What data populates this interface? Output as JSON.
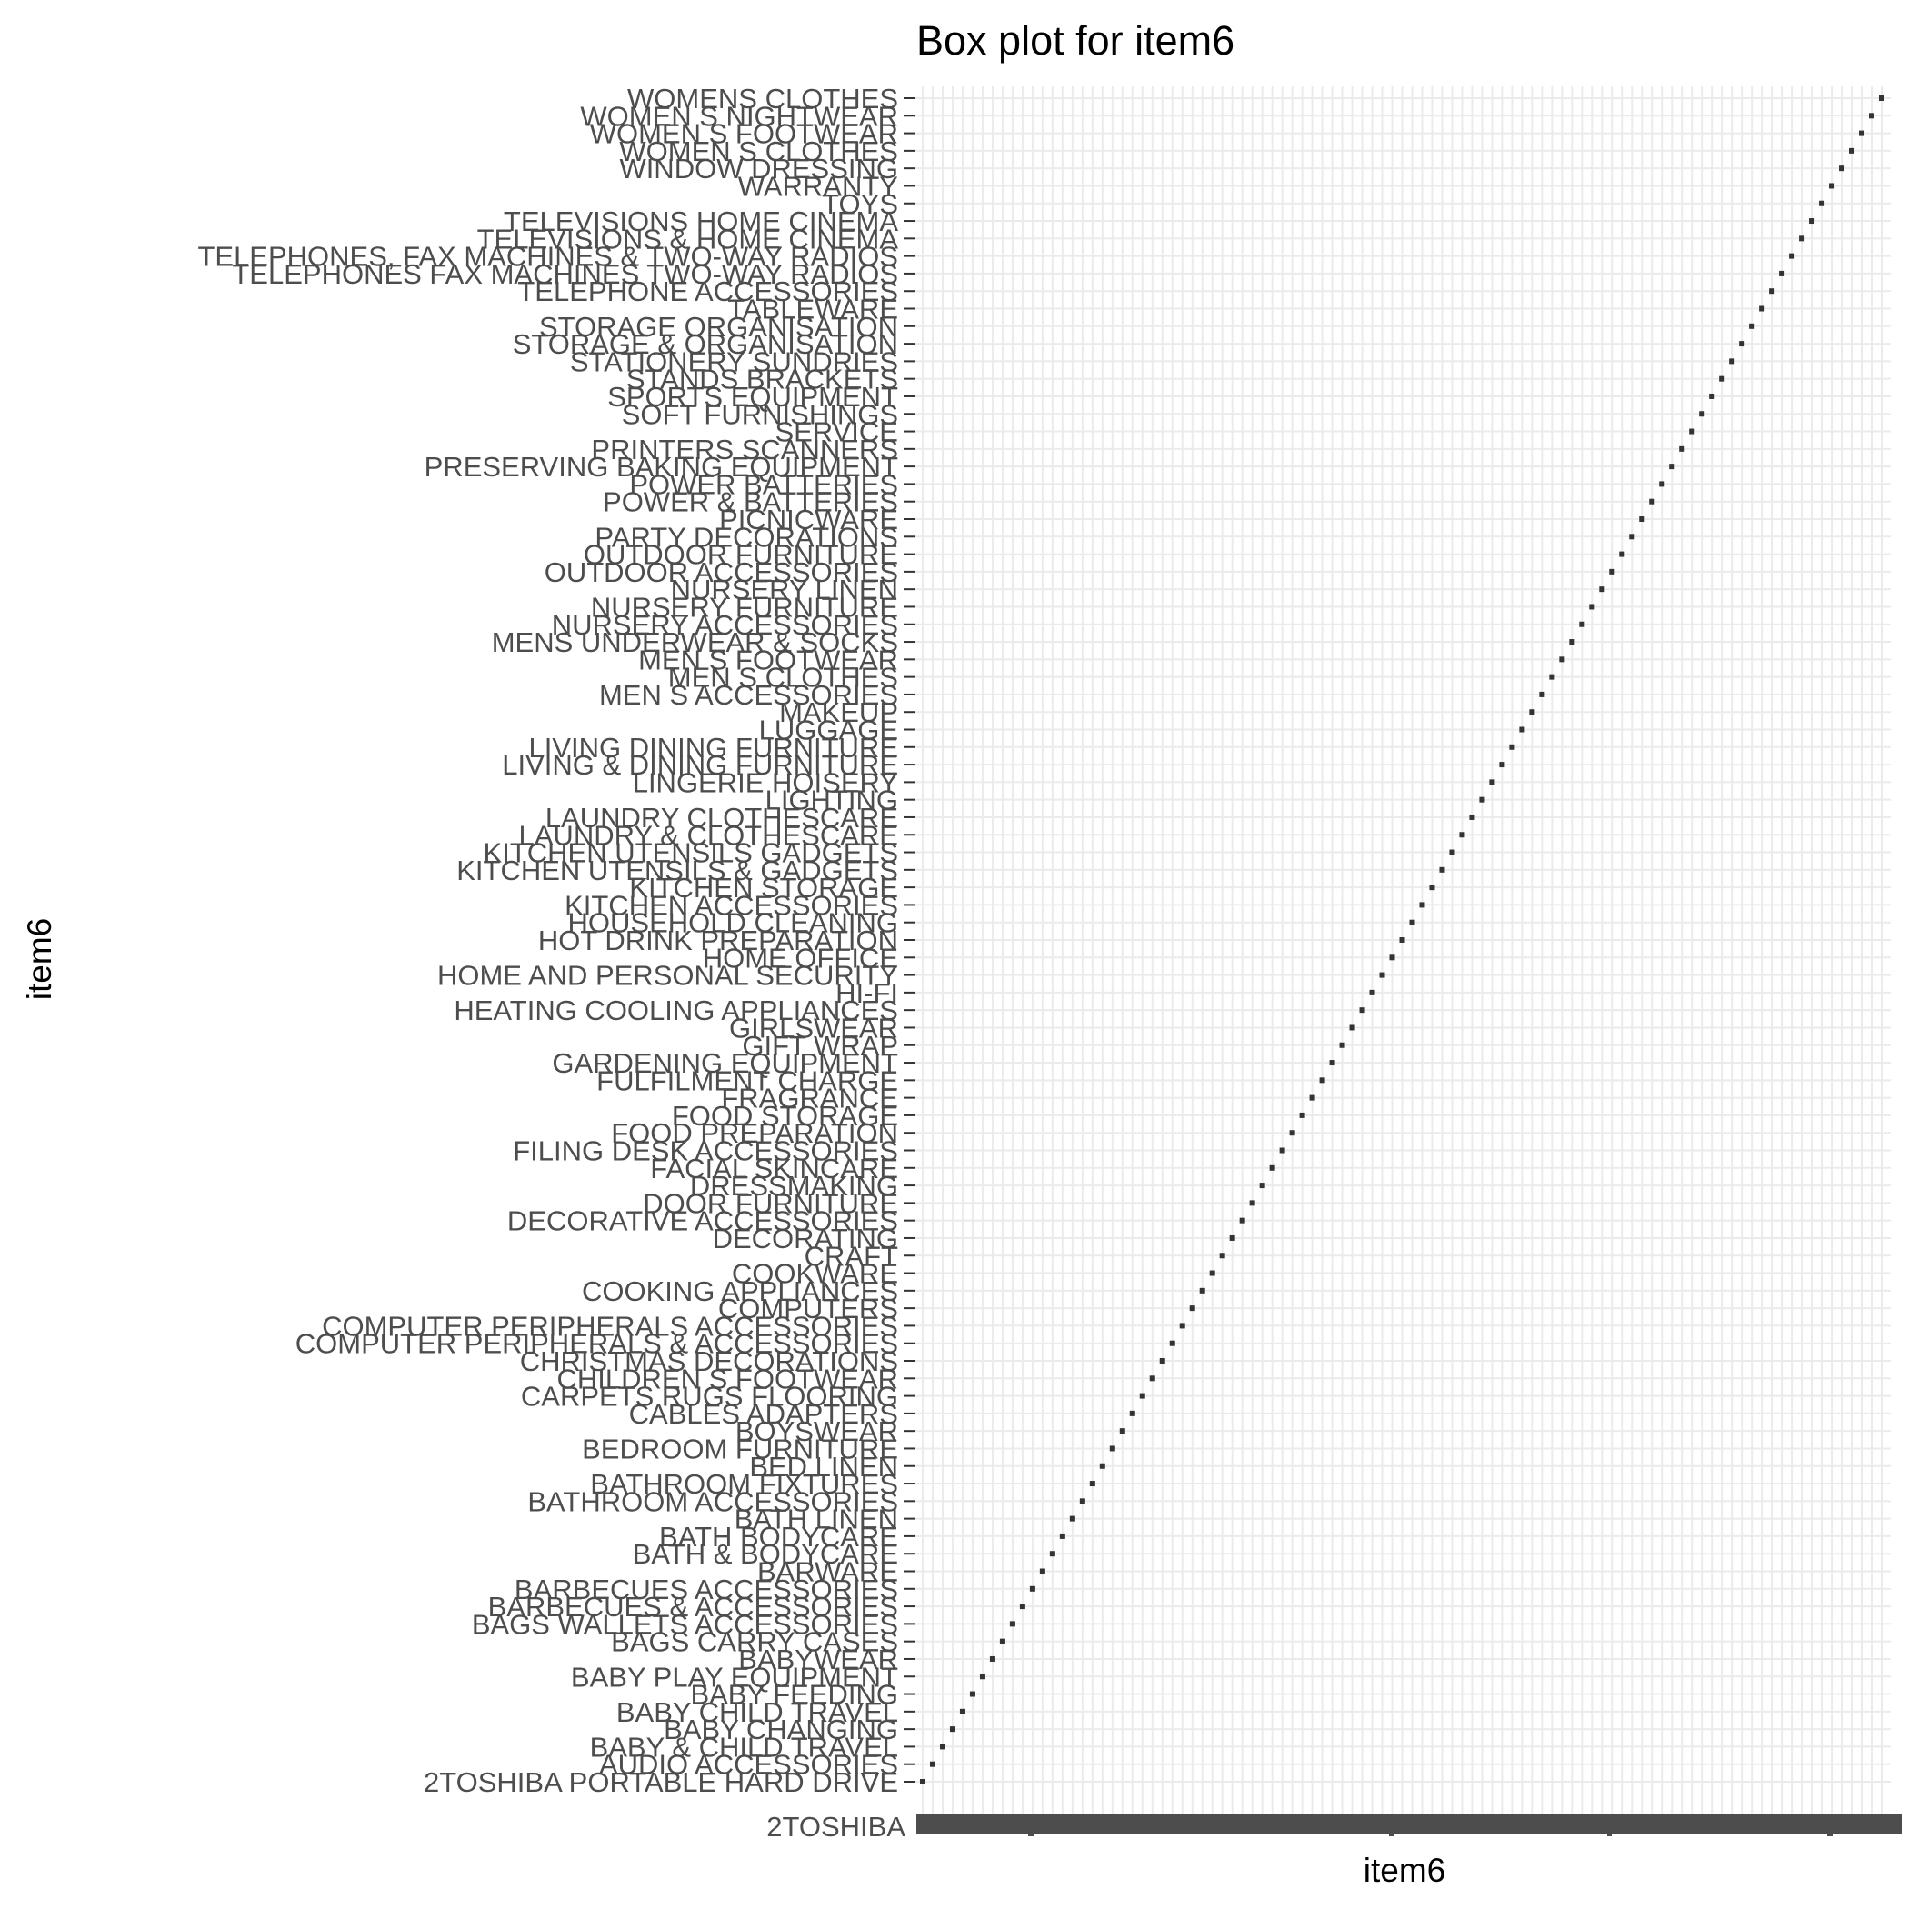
{
  "chart_data": {
    "type": "box",
    "title": "Box plot for item6",
    "xlabel": "item6",
    "ylabel": "item6",
    "grid": true,
    "legend": "none",
    "x_tick_first_label": "2TOSHIBA",
    "categories": [
      "2TOSHIBA PORTABLE HARD DRIVE",
      "AUDIO ACCESSORIES",
      "BABY & CHILD TRAVEL",
      "BABY CHANGING",
      "BABY CHILD TRAVEL",
      "BABY FEEDING",
      "BABY PLAY EQUIPMENT",
      "BABYWEAR",
      "BAGS CARRY CASES",
      "BAGS WALLETS ACCESSORIES",
      "BARBECUES & ACCESSORIES",
      "BARBECUES ACCESSORIES",
      "BARWARE",
      "BATH & BODYCARE",
      "BATH BODYCARE",
      "BATH LINEN",
      "BATHROOM ACCESSORIES",
      "BATHROOM FIXTURES",
      "BED LINEN",
      "BEDROOM FURNITURE",
      "BOYSWEAR",
      "CABLES ADAPTERS",
      "CARPETS RUGS FLOORING",
      "CHILDREN S FOOTWEAR",
      "CHRISTMAS DECORATIONS",
      "COMPUTER PERIPHERALS & ACCESSORIES",
      "COMPUTER PERIPHERALS ACCESSORIES",
      "COMPUTERS",
      "COOKING APPLIANCES",
      "COOKWARE",
      "CRAFT",
      "DECORATING",
      "DECORATIVE ACCESSORIES",
      "DOOR FURNITURE",
      "DRESSMAKING",
      "FACIAL SKINCARE",
      "FILING DESK ACCESSORIES",
      "FOOD PREPARATION",
      "FOOD STORAGE",
      "FRAGRANCE",
      "FULFILMENT CHARGE",
      "GARDENING EQUIPMENT",
      "GIFT WRAP",
      "GIRLSWEAR",
      "HEATING COOLING APPLIANCES",
      "HI-FI",
      "HOME AND PERSONAL SECURITY",
      "HOME OFFICE",
      "HOT DRINK PREPARATION",
      "HOUSEHOLD CLEANING",
      "KITCHEN ACCESSORIES",
      "KITCHEN STORAGE",
      "KITCHEN UTENSILS & GADGETS",
      "KITCHEN UTENSILS GADGETS",
      "LAUNDRY & CLOTHESCARE",
      "LAUNDRY CLOTHESCARE",
      "LIGHTING",
      "LINGERIE HOISERY",
      "LIVING & DINING FURNITURE",
      "LIVING DINING FURNITURE",
      "LUGGAGE",
      "MAKEUP",
      "MEN S ACCESSORIES",
      "MEN S CLOTHES",
      "MEN S FOOTWEAR",
      "MENS UNDERWEAR & SOCKS",
      "NURSERY ACCESSORIES",
      "NURSERY FURNITURE",
      "NURSERY LINEN",
      "OUTDOOR ACCESSORIES",
      "OUTDOOR FURNITURE",
      "PARTY DECORATIONS",
      "PICNICWARE",
      "POWER & BATTERIES",
      "POWER BATTERIES",
      "PRESERVING BAKING EQUIPMENT",
      "PRINTERS SCANNERS",
      "SERVICE",
      "SOFT FURNISHINGS",
      "SPORTS EQUIPMENT",
      "STANDS BRACKETS",
      "STATIONERY SUNDRIES",
      "STORAGE & ORGANISATION",
      "STORAGE ORGANISATION",
      "TABLEWARE",
      "TELEPHONE ACCESSORIES",
      "TELEPHONES FAX MACHINES TWO-WAY RADIOS",
      "TELEPHONES, FAX MACHINES & TWO-WAY RADIOS",
      "TELEVISIONS & HOME CINEMA",
      "TELEVISIONS HOME CINEMA",
      "TOYS",
      "WARRANTY",
      "WINDOW DRESSING",
      "WOMEN S CLOTHES",
      "WOMEN S FOOTWEAR",
      "WOMEN S NIGHTWEAR",
      "WOMENS CLOTHES"
    ],
    "colors": {
      "mark": "#333333",
      "grid": "#ebebeb",
      "tick_label": "#4d4d4d",
      "tick": "#333333",
      "text": "#000000",
      "background": "#ffffff"
    }
  }
}
